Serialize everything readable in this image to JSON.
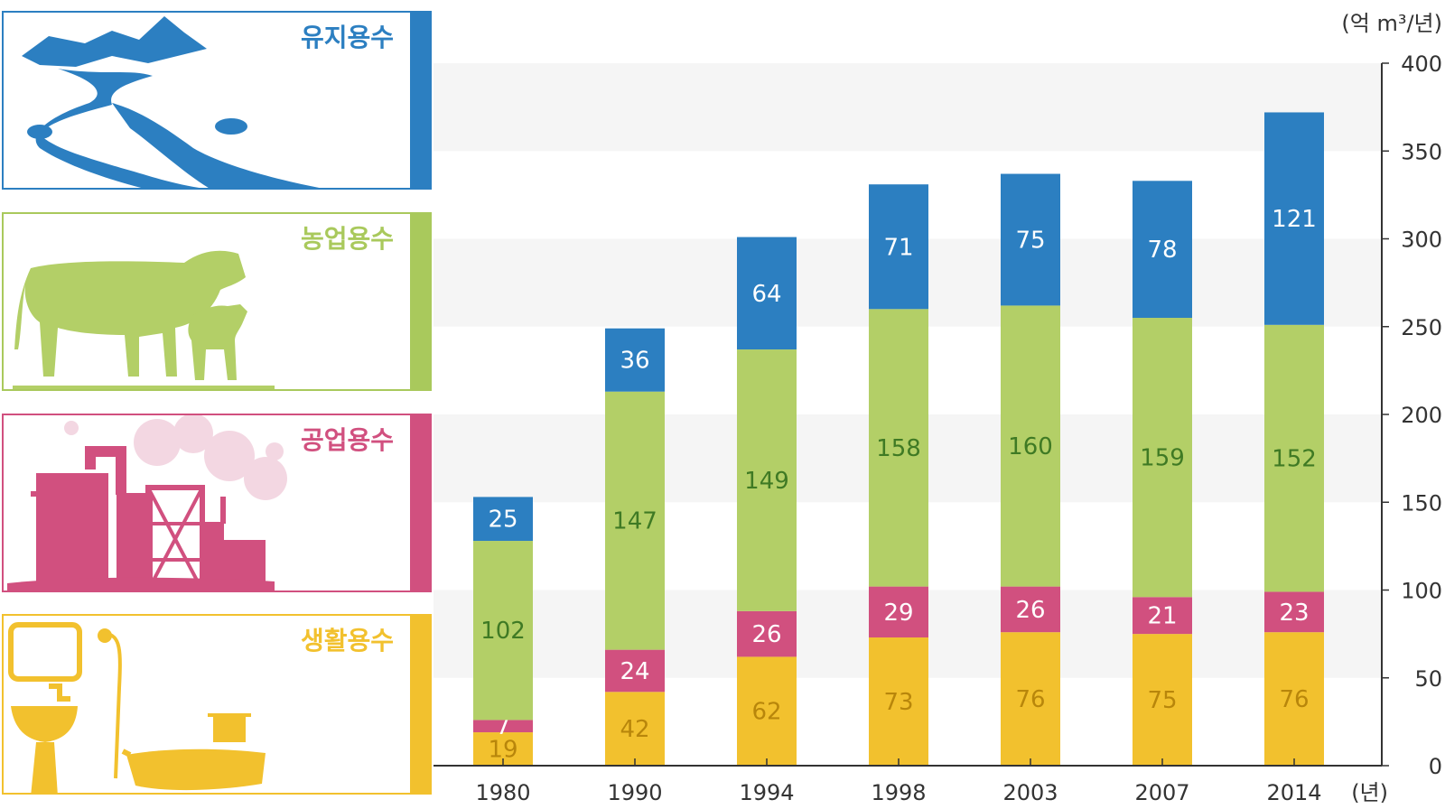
{
  "chart_data": {
    "type": "bar",
    "stacked": true,
    "unit": "(억 m³/년)",
    "xlabel": "(년)",
    "categories": [
      "1980",
      "1990",
      "1994",
      "1998",
      "2003",
      "2007",
      "2014"
    ],
    "ylim": [
      0,
      400
    ],
    "yticks": [
      0,
      50,
      100,
      150,
      200,
      250,
      300,
      350,
      400
    ],
    "series": [
      {
        "name": "생활용수",
        "color": "#f2c12e",
        "label_color": "#b8860b",
        "values": [
          19,
          42,
          62,
          73,
          76,
          75,
          76
        ]
      },
      {
        "name": "공업용수",
        "color": "#d1507f",
        "label_color": "#ffffff",
        "values": [
          7,
          24,
          26,
          29,
          26,
          21,
          23
        ]
      },
      {
        "name": "농업용수",
        "color": "#b3cf67",
        "label_color": "#3f7a24",
        "values": [
          102,
          147,
          149,
          158,
          160,
          159,
          152
        ]
      },
      {
        "name": "유지용수",
        "color": "#2c7fc1",
        "label_color": "#ffffff",
        "values": [
          25,
          36,
          64,
          71,
          75,
          78,
          121
        ]
      }
    ],
    "legend_position": "left",
    "grid": "alternating horizontal bands"
  },
  "legend": [
    {
      "label": "유지용수",
      "color": "#2c7fc1",
      "icon": "river-mountains-icon"
    },
    {
      "label": "농업용수",
      "color": "#a9c95c",
      "icon": "cow-and-calf-icon"
    },
    {
      "label": "공업용수",
      "color": "#d1507f",
      "icon": "factory-icon"
    },
    {
      "label": "생활용수",
      "color": "#f2c12e",
      "icon": "bathroom-icon"
    }
  ]
}
